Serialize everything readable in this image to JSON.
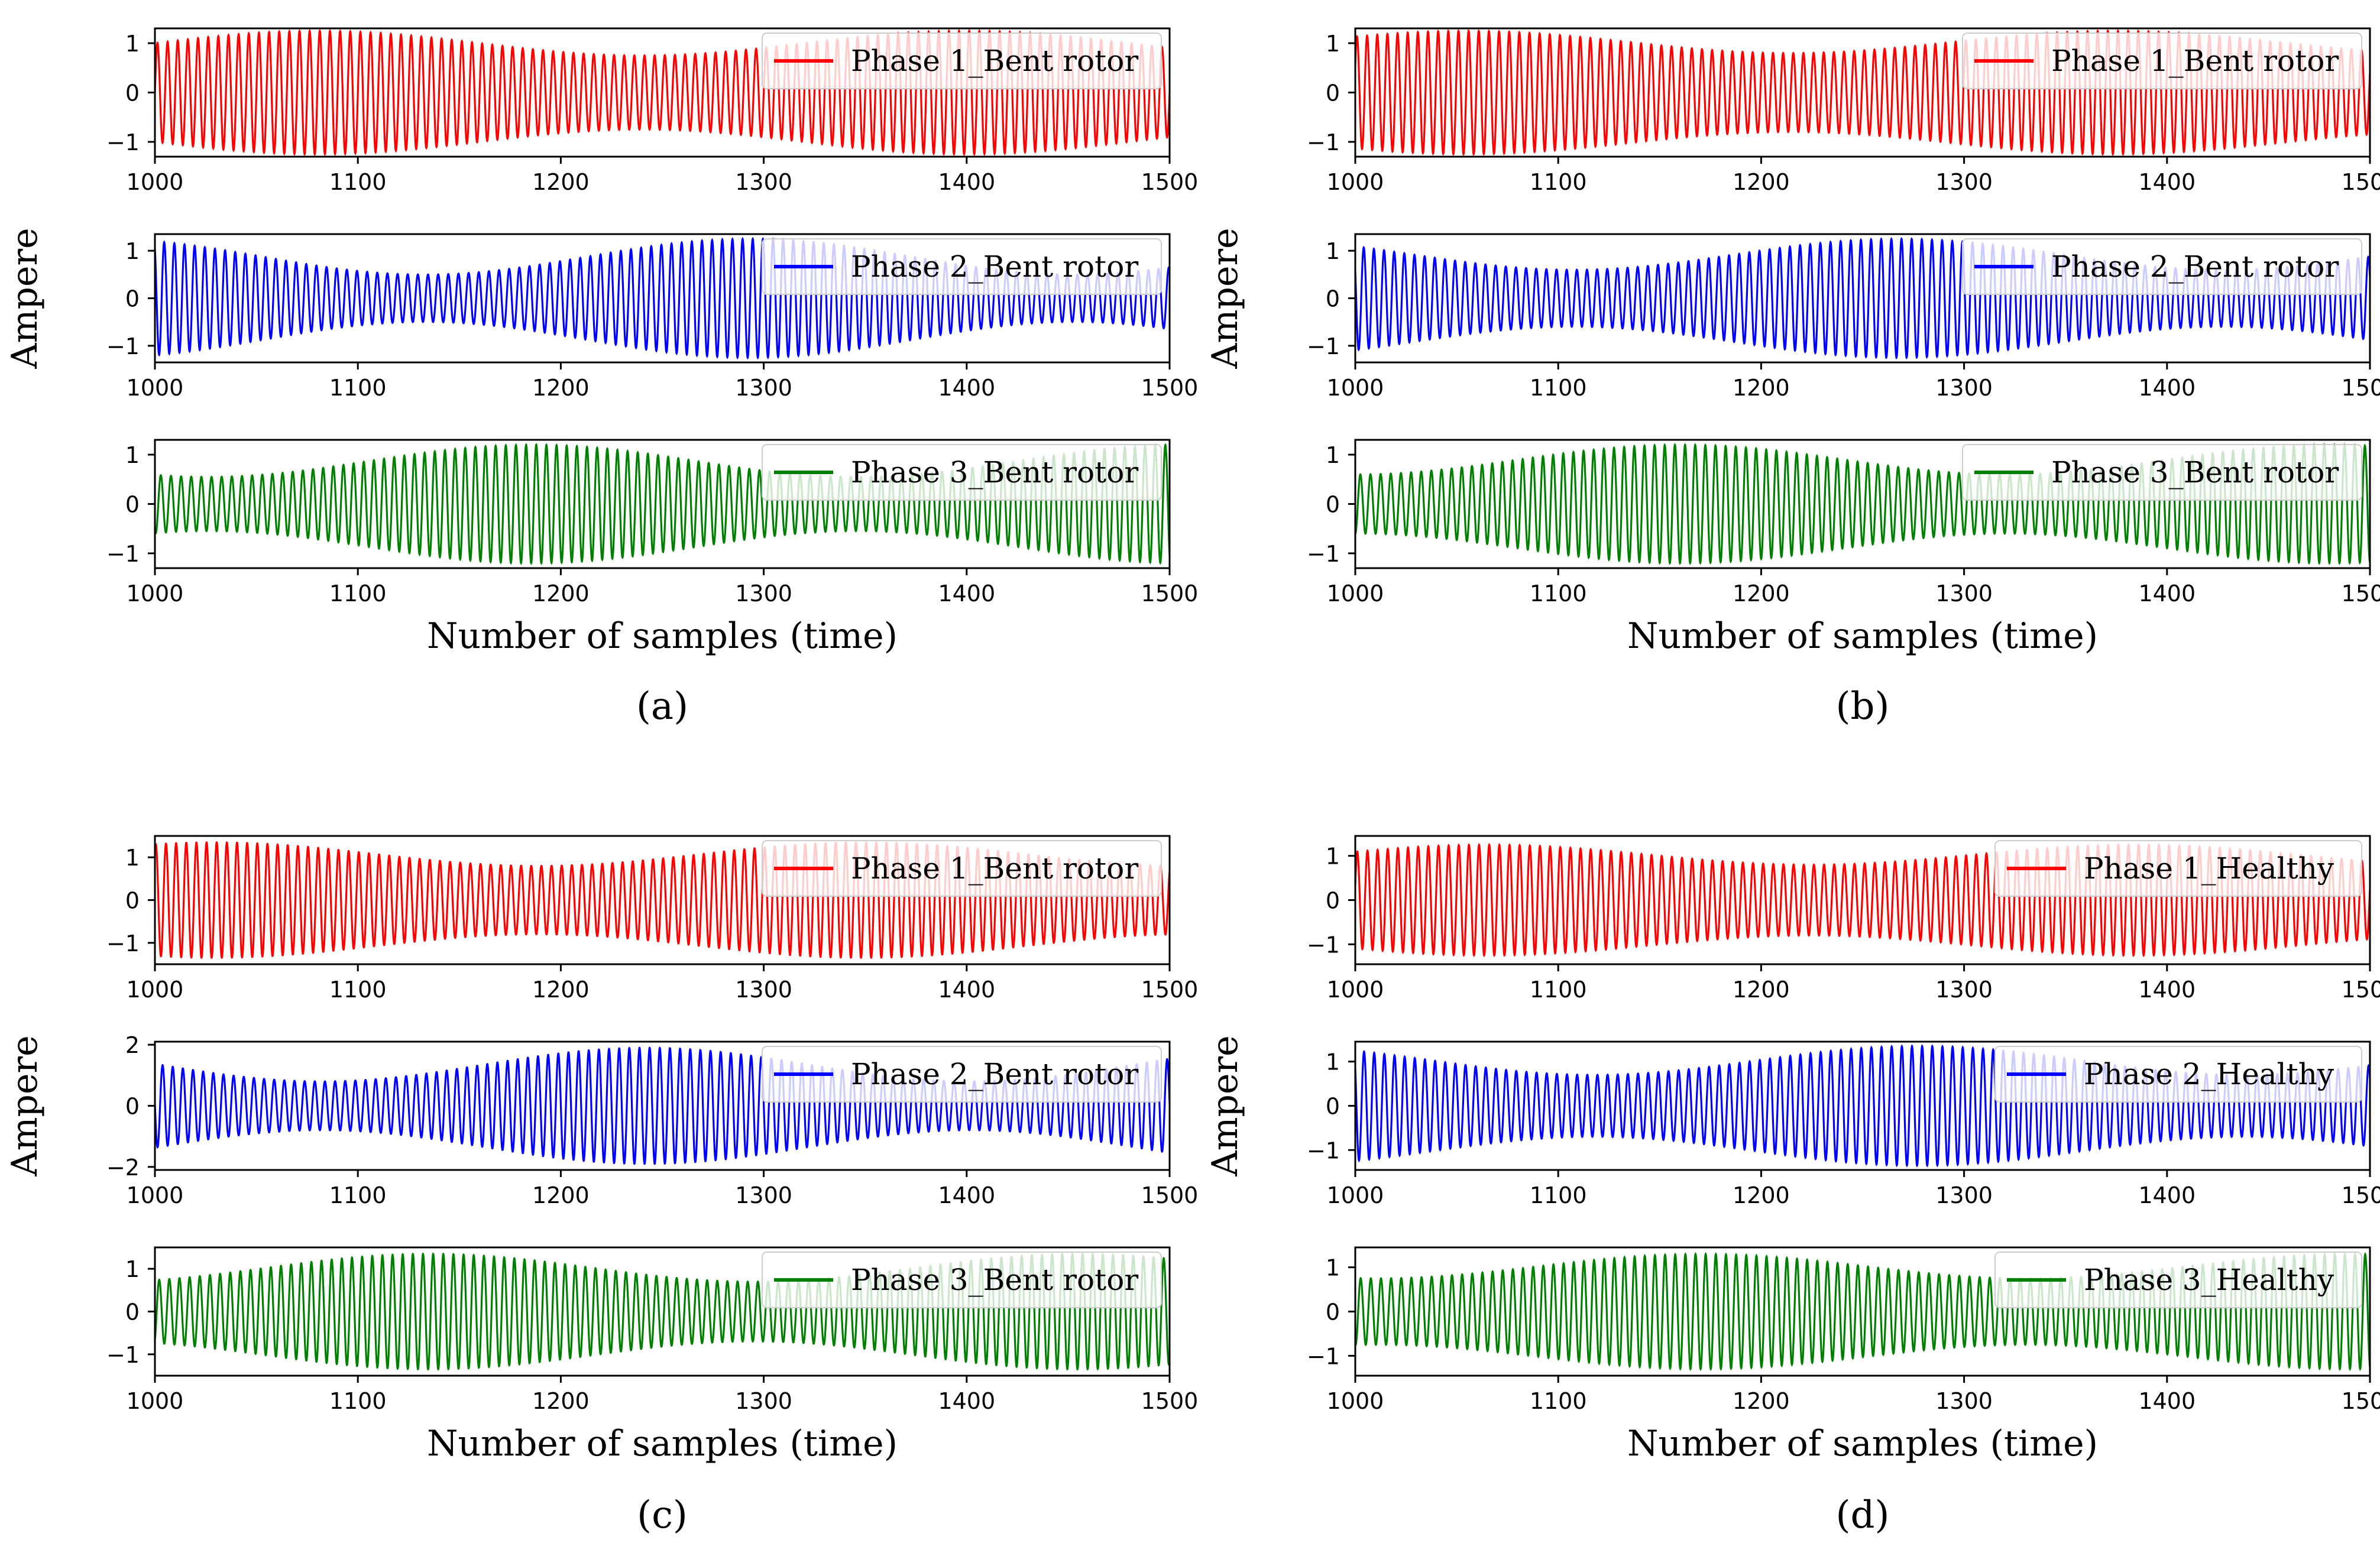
{
  "figure": {
    "panels": [
      {
        "id": "a",
        "label": "(a)",
        "ylabel": "Ampere",
        "xlabel": "Number of samples (time)",
        "subplots": [
          {
            "legend": "Phase 1_Bent rotor",
            "color": "#ff0000",
            "yticks": [
              -1,
              0,
              1
            ],
            "ylim": [
              -1.3,
              1.3
            ],
            "amp_max": 1.25,
            "amp_min": 0.75,
            "phase": 0.0,
            "offset": 0.0
          },
          {
            "legend": "Phase 2_Bent rotor",
            "color": "#0000ff",
            "yticks": [
              -1,
              0,
              1
            ],
            "ylim": [
              -1.35,
              1.35
            ],
            "amp_max": 1.25,
            "amp_min": 0.5,
            "phase": 2.1,
            "offset": 0.0
          },
          {
            "legend": "Phase 3_Bent rotor",
            "color": "#008000",
            "yticks": [
              -1,
              0,
              1
            ],
            "ylim": [
              -1.3,
              1.3
            ],
            "amp_max": 1.2,
            "amp_min": 0.55,
            "phase": 4.2,
            "offset": 0.0
          }
        ]
      },
      {
        "id": "b",
        "label": "(b)",
        "ylabel": "Ampere",
        "xlabel": "Number of samples (time)",
        "subplots": [
          {
            "legend": "Phase 1_Bent rotor",
            "color": "#ff0000",
            "yticks": [
              -1,
              0,
              1
            ],
            "ylim": [
              -1.3,
              1.3
            ],
            "amp_max": 1.25,
            "amp_min": 0.8,
            "phase": 0.5,
            "offset": 0.0
          },
          {
            "legend": "Phase 2_Bent rotor",
            "color": "#0000ff",
            "yticks": [
              -1,
              0,
              1
            ],
            "ylim": [
              -1.35,
              1.35
            ],
            "amp_max": 1.25,
            "amp_min": 0.6,
            "phase": 2.6,
            "offset": 0.0
          },
          {
            "legend": "Phase 3_Bent rotor",
            "color": "#008000",
            "yticks": [
              -1,
              0,
              1
            ],
            "ylim": [
              -1.3,
              1.3
            ],
            "amp_max": 1.2,
            "amp_min": 0.6,
            "phase": 4.7,
            "offset": 0.0
          }
        ]
      },
      {
        "id": "c",
        "label": "(c)",
        "ylabel": "Ampere",
        "xlabel": "Number of samples (time)",
        "subplots": [
          {
            "legend": "Phase 1_Bent rotor",
            "color": "#ff0000",
            "yticks": [
              -1,
              0,
              1
            ],
            "ylim": [
              -1.5,
              1.5
            ],
            "amp_max": 1.35,
            "amp_min": 0.8,
            "phase": 1.0,
            "offset": 0.0
          },
          {
            "legend": "Phase 2_Bent rotor",
            "color": "#0000ff",
            "yticks": [
              -2,
              0,
              2
            ],
            "ylim": [
              -2.1,
              2.1
            ],
            "amp_max": 1.9,
            "amp_min": 0.8,
            "phase": 3.1,
            "offset": 0.0
          },
          {
            "legend": "Phase 3_Bent rotor",
            "color": "#008000",
            "yticks": [
              -1,
              0,
              1
            ],
            "ylim": [
              -1.5,
              1.5
            ],
            "amp_max": 1.35,
            "amp_min": 0.7,
            "phase": 5.2,
            "offset": 0.0
          }
        ]
      },
      {
        "id": "d",
        "label": "(d)",
        "ylabel": "Ampere",
        "xlabel": "Number of samples (time)",
        "subplots": [
          {
            "legend": "Phase 1_Healthy",
            "color": "#ff0000",
            "yticks": [
              -1,
              0,
              1
            ],
            "ylim": [
              -1.45,
              1.45
            ],
            "amp_max": 1.25,
            "amp_min": 0.8,
            "phase": 0.3,
            "offset": 0.0
          },
          {
            "legend": "Phase 2_Healthy",
            "color": "#0000ff",
            "yticks": [
              -1,
              0,
              1
            ],
            "ylim": [
              -1.45,
              1.45
            ],
            "amp_max": 1.35,
            "amp_min": 0.7,
            "phase": 2.4,
            "offset": 0.0
          },
          {
            "legend": "Phase 3_Healthy",
            "color": "#008000",
            "yticks": [
              -1,
              0,
              1
            ],
            "ylim": [
              -1.45,
              1.45
            ],
            "amp_max": 1.3,
            "amp_min": 0.75,
            "phase": 4.5,
            "offset": 0.0
          }
        ]
      }
    ]
  },
  "chart_data": {
    "type": "line",
    "x": {
      "min": 1000,
      "max": 1500
    },
    "xticks": [
      1000,
      1100,
      1200,
      1300,
      1400,
      1500
    ],
    "signal": {
      "cycles": 100,
      "envelope_period": 320
    }
  }
}
